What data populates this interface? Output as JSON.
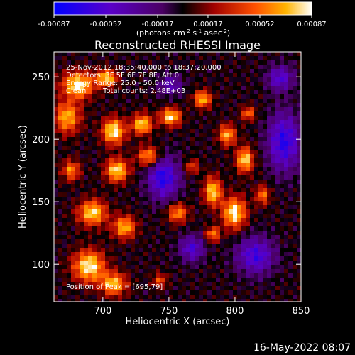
{
  "chart_data": {
    "type": "heatmap",
    "title": "Reconstructed RHESSI Image",
    "xlabel": "Heliocentric X (arcsec)",
    "ylabel": "Heliocentric Y (arcsec)",
    "xlim": [
      663,
      850
    ],
    "ylim": [
      70,
      270
    ],
    "x_ticks": [
      "700",
      "750",
      "800",
      "850"
    ],
    "x_tick_values": [
      700,
      750,
      800,
      850
    ],
    "y_ticks": [
      "100",
      "150",
      "200",
      "250"
    ],
    "y_tick_values": [
      100,
      150,
      200,
      250
    ],
    "colorbar": {
      "ticks": [
        "-0.00087",
        "-0.00052",
        "-0.00017",
        "0.00017",
        "0.00052",
        "0.00087"
      ],
      "tick_values": [
        -0.00087,
        -0.00052,
        -0.00017,
        0.00017,
        0.00052,
        0.00087
      ],
      "range": [
        -0.00087,
        0.00087
      ],
      "unit_label": [
        "(photons cm",
        "-2",
        " s",
        "-1",
        " asec",
        "-2",
        ")"
      ]
    },
    "annotations": [
      "25-Nov-2012 18:35:40.000 to 18:37:20.000",
      "Detectors: 3F 5F 6F 7F 8F, Att 0",
      "Energy Range: 25.0 - 50.0 keV",
      "Clean",
      "Total counts: 2.48E+03"
    ],
    "peak_label": "Position of Peak = [695,79]",
    "peak": [
      695,
      79
    ]
  },
  "footer": {
    "timestamp": "16-May-2022 08:07"
  }
}
